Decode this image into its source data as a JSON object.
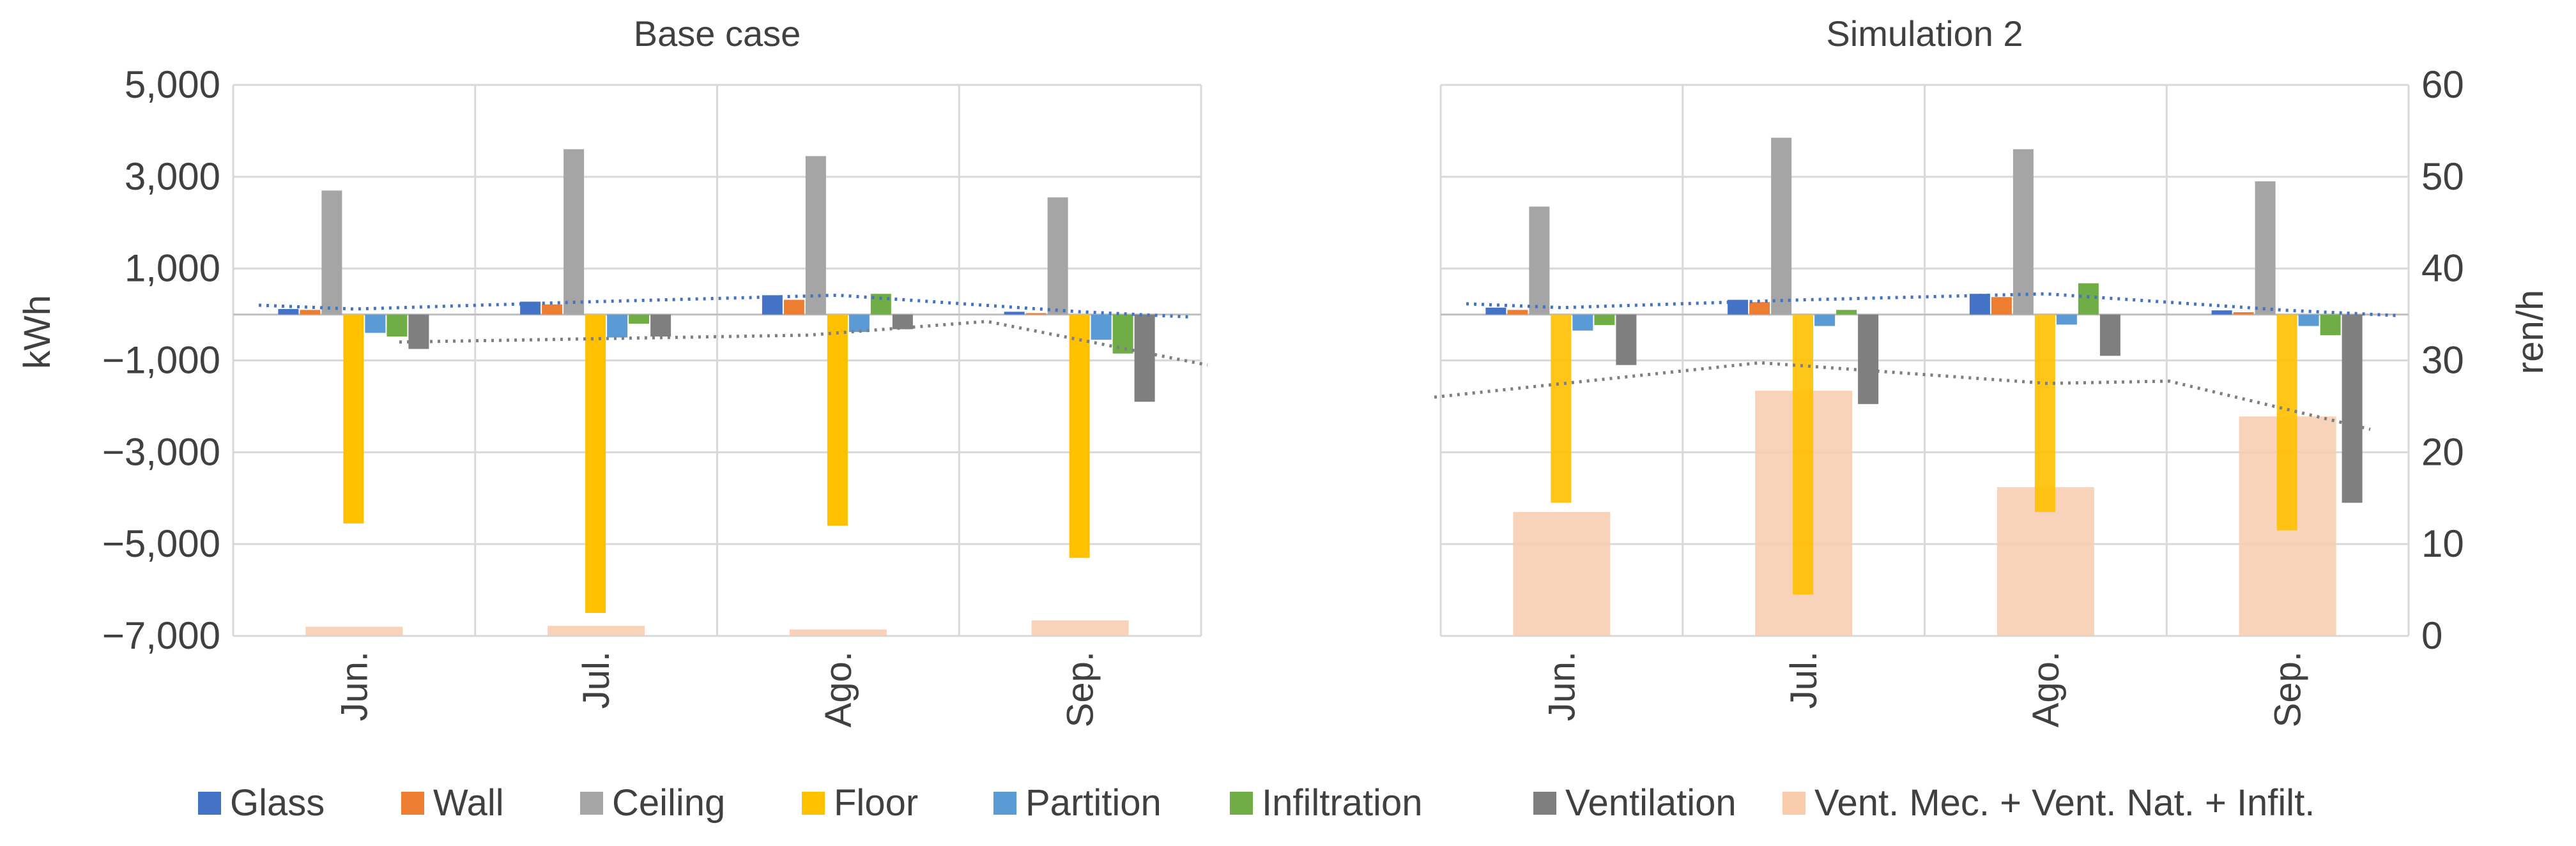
{
  "chart_data": [
    {
      "type": "bar",
      "title": "Base case",
      "categories": [
        "Jun.",
        "Jul.",
        "Ago.",
        "Sep."
      ],
      "ylabel": "kWh",
      "ylim": [
        -7000,
        5000
      ],
      "y_ticks": [
        5000,
        3000,
        1000,
        -1000,
        -3000,
        -5000,
        -7000
      ],
      "y_tick_labels": [
        "5,000",
        "3,000",
        "1,000",
        "−1,000",
        "−3,000",
        "−5,000",
        "−7,000"
      ],
      "grid": true,
      "series": [
        {
          "name": "Glass",
          "color": "#4472C4",
          "values": [
            120,
            280,
            420,
            60
          ]
        },
        {
          "name": "Wall",
          "color": "#ED7D31",
          "values": [
            100,
            220,
            320,
            30
          ]
        },
        {
          "name": "Ceiling",
          "color": "#A5A5A5",
          "values": [
            2700,
            3600,
            3450,
            2550
          ]
        },
        {
          "name": "Floor",
          "color": "#FFC000",
          "values": [
            -4550,
            -6500,
            -4600,
            -5300
          ]
        },
        {
          "name": "Partition",
          "color": "#5B9BD5",
          "values": [
            -400,
            -500,
            -380,
            -550
          ]
        },
        {
          "name": "Infiltration",
          "color": "#70AD47",
          "values": [
            -480,
            -200,
            450,
            -850
          ]
        },
        {
          "name": "Ventilation",
          "color": "#7F7F7F",
          "values": [
            -750,
            -480,
            -320,
            -1900
          ]
        }
      ],
      "secondary_series": {
        "name": "Vent. Mec. + Vent. Nat. + Infilt.",
        "color": "#F8CBAD",
        "axis": "ren/h",
        "values": [
          1.0,
          1.1,
          0.7,
          1.7
        ]
      }
    },
    {
      "type": "bar",
      "title": "Simulation 2",
      "categories": [
        "Jun.",
        "Jul.",
        "Ago.",
        "Sep."
      ],
      "y2label": "ren/h",
      "y2lim": [
        0,
        60
      ],
      "y2_ticks": [
        60,
        50,
        40,
        30,
        20,
        10,
        0
      ],
      "y2_tick_labels": [
        "60",
        "50",
        "40",
        "30",
        "20",
        "10",
        "0"
      ],
      "grid": true,
      "series": [
        {
          "name": "Glass",
          "color": "#4472C4",
          "values": [
            150,
            320,
            450,
            90
          ]
        },
        {
          "name": "Wall",
          "color": "#ED7D31",
          "values": [
            100,
            270,
            380,
            50
          ]
        },
        {
          "name": "Ceiling",
          "color": "#A5A5A5",
          "values": [
            2350,
            3850,
            3600,
            2900
          ]
        },
        {
          "name": "Floor",
          "color": "#FFC000",
          "values": [
            -4100,
            -6100,
            -4300,
            -4700
          ]
        },
        {
          "name": "Partition",
          "color": "#5B9BD5",
          "values": [
            -350,
            -250,
            -220,
            -250
          ]
        },
        {
          "name": "Infiltration",
          "color": "#70AD47",
          "values": [
            -230,
            100,
            680,
            -450
          ]
        },
        {
          "name": "Ventilation",
          "color": "#7F7F7F",
          "values": [
            -1100,
            -1950,
            -900,
            -4100
          ]
        }
      ],
      "secondary_series": {
        "name": "Vent. Mec. + Vent. Nat. + Infilt.",
        "color": "#F8CBAD",
        "axis": "ren/h",
        "values": [
          13.5,
          26.7,
          16.2,
          23.9
        ]
      }
    }
  ],
  "legend": [
    {
      "label": "Glass",
      "color": "#4472C4"
    },
    {
      "label": "Wall",
      "color": "#ED7D31"
    },
    {
      "label": "Ceiling",
      "color": "#A5A5A5"
    },
    {
      "label": "Floor",
      "color": "#FFC000"
    },
    {
      "label": "Partition",
      "color": "#5B9BD5"
    },
    {
      "label": "Infiltration",
      "color": "#70AD47"
    },
    {
      "label": "Ventilation",
      "color": "#7F7F7F"
    },
    {
      "label": "Vent. Mec. + Vent. Nat. + Infilt.",
      "color": "#F8CBAD"
    }
  ]
}
